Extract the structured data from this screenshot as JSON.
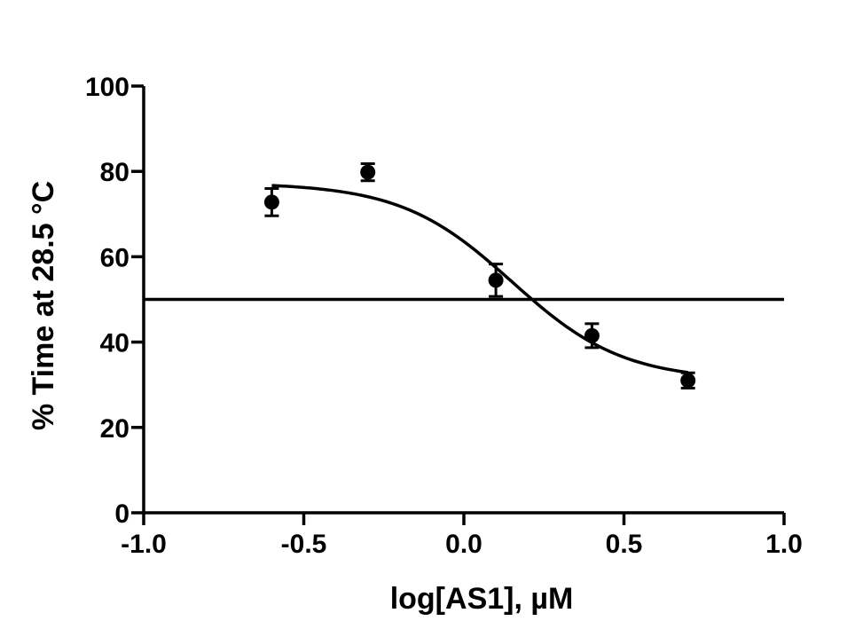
{
  "chart_data": {
    "type": "scatter",
    "xlabel": "log[AS1], µM",
    "ylabel": "% Time at 28.5 °C",
    "xlim": [
      -1.0,
      1.0
    ],
    "ylim": [
      0,
      100
    ],
    "x_ticks": [
      -1.0,
      -0.5,
      0.0,
      0.5,
      1.0
    ],
    "x_tick_labels": [
      "-1.0",
      "-0.5",
      "0.0",
      "0.5",
      "1.0"
    ],
    "y_ticks": [
      0,
      20,
      40,
      60,
      80,
      100
    ],
    "y_tick_labels": [
      "0",
      "20",
      "40",
      "60",
      "80",
      "100"
    ],
    "grid": false,
    "series": [
      {
        "type": "scatter",
        "x": [
          -0.6,
          -0.3,
          0.1,
          0.4,
          0.7
        ],
        "y": [
          72.8,
          79.8,
          54.5,
          41.5,
          31.0
        ],
        "error": [
          3.2,
          2.0,
          3.8,
          2.8,
          1.8
        ]
      }
    ],
    "fit_curve": {
      "model": "sigmoidal dose-response",
      "x_range": [
        -0.6,
        0.7
      ],
      "top": 77.3,
      "bottom": 31.0,
      "logIC50": 0.15,
      "hill_slope": -2.5
    },
    "reference_line": {
      "orientation": "horizontal",
      "y": 50,
      "x_range": [
        -1.0,
        1.0
      ]
    },
    "colors": {
      "marks": "#000000",
      "background": "#ffffff"
    }
  }
}
